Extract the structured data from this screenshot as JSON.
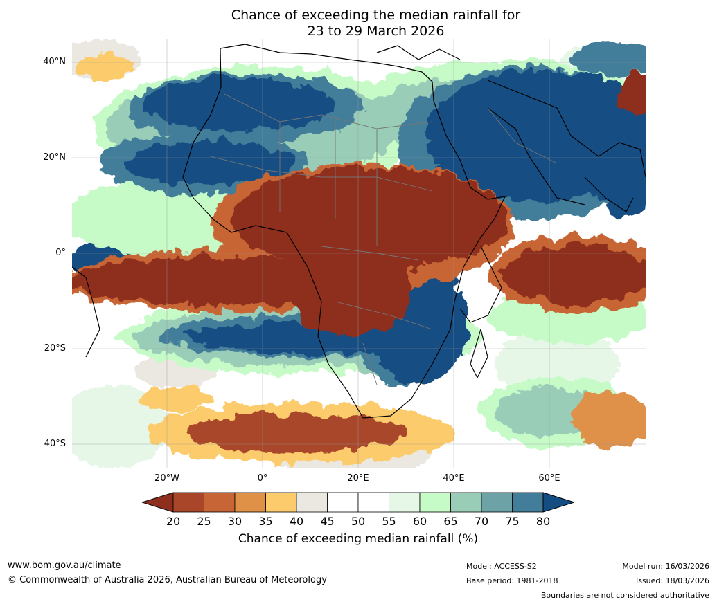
{
  "title": {
    "line1": "Chance of exceeding the median rainfall for",
    "line2": "23 to 29 March 2026"
  },
  "axes": {
    "lat_labels": [
      "40°N",
      "20°N",
      "0°",
      "20°S",
      "40°S"
    ],
    "lon_labels": [
      "20°W",
      "0°",
      "20°E",
      "40°E",
      "60°E"
    ]
  },
  "colorbar": {
    "ticks": [
      "20",
      "25",
      "30",
      "35",
      "40",
      "45",
      "50",
      "55",
      "60",
      "65",
      "70",
      "75",
      "80"
    ],
    "colors": [
      "#8e2f1d",
      "#a9462a",
      "#c86536",
      "#df9148",
      "#fccb6c",
      "#ebe8e2",
      "#ffffff",
      "#ffffff",
      "#e6f6e7",
      "#c6fbc8",
      "#99cdb8",
      "#6da2a6",
      "#427d99",
      "#144d82"
    ],
    "label": "Chance of exceeding median rainfall (%)"
  },
  "footer": {
    "website": "www.bom.gov.au/climate",
    "copyright": "© Commonwealth of Australia 2026, Australian Bureau of Meteorology",
    "model": "Model: ACCESS-S2",
    "base_period": "Base period: 1981-2018",
    "model_run": "Model run: 16/03/2026",
    "issued": "Issued: 18/03/2026",
    "boundaries": "Boundaries are not considered authoritative"
  }
}
